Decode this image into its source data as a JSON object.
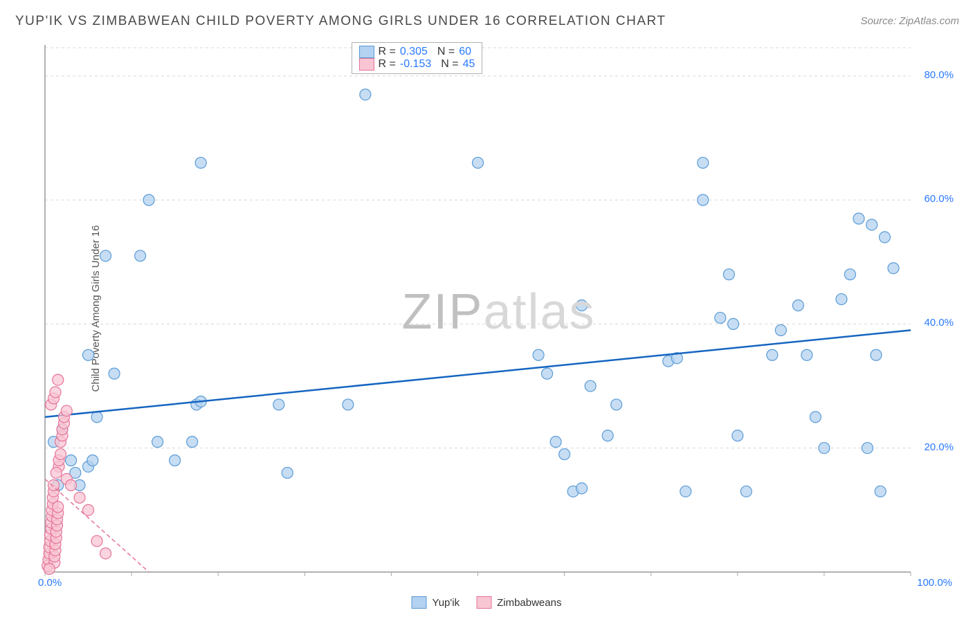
{
  "title": "YUP'IK VS ZIMBABWEAN CHILD POVERTY AMONG GIRLS UNDER 16 CORRELATION CHART",
  "source": "Source: ZipAtlas.com",
  "ylabel": "Child Poverty Among Girls Under 16",
  "watermark": {
    "zip": "ZIP",
    "atlas": "atlas"
  },
  "chart": {
    "type": "scatter",
    "background_color": "#ffffff",
    "grid_color": "#d8d8d8",
    "axis_color": "#999999",
    "tick_color": "#aaaaaa",
    "xlim": [
      0,
      100
    ],
    "ylim": [
      0,
      85
    ],
    "x_ticks": [
      0,
      10,
      20,
      30,
      40,
      50,
      60,
      70,
      80,
      90,
      100
    ],
    "y_gridlines": [
      20,
      40,
      60,
      80
    ],
    "x_axis_labels": [
      {
        "value": 0,
        "text": "0.0%"
      },
      {
        "value": 100,
        "text": "100.0%"
      }
    ],
    "y_axis_labels": [
      {
        "value": 20,
        "text": "20.0%"
      },
      {
        "value": 40,
        "text": "40.0%"
      },
      {
        "value": 60,
        "text": "60.0%"
      },
      {
        "value": 80,
        "text": "80.0%"
      }
    ],
    "point_radius": 8,
    "series": [
      {
        "name": "Yup'ik",
        "fill_color": "#b3d1f0",
        "stroke_color": "#5a9bd5",
        "fill_opacity": 0.75,
        "R": "0.305",
        "N": "60",
        "trend": {
          "x1": 0,
          "y1": 25,
          "x2": 100,
          "y2": 39,
          "color": "#1565c0",
          "width": 2.5,
          "dash": ""
        },
        "points": [
          [
            1,
            21
          ],
          [
            1.5,
            14
          ],
          [
            2,
            23
          ],
          [
            3,
            18
          ],
          [
            3.5,
            16
          ],
          [
            4,
            14
          ],
          [
            5,
            17
          ],
          [
            5.5,
            18
          ],
          [
            5,
            35
          ],
          [
            6,
            25
          ],
          [
            7,
            51
          ],
          [
            8,
            32
          ],
          [
            11,
            51
          ],
          [
            12,
            60
          ],
          [
            13,
            21
          ],
          [
            15,
            18
          ],
          [
            17,
            21
          ],
          [
            17.5,
            27
          ],
          [
            18,
            27.5
          ],
          [
            18,
            66
          ],
          [
            27,
            27
          ],
          [
            28,
            16
          ],
          [
            35,
            27
          ],
          [
            37,
            77
          ],
          [
            50,
            66
          ],
          [
            57,
            35
          ],
          [
            58,
            32
          ],
          [
            59,
            21
          ],
          [
            60,
            19
          ],
          [
            61,
            13
          ],
          [
            62,
            13.5
          ],
          [
            63,
            30
          ],
          [
            62,
            43
          ],
          [
            65,
            22
          ],
          [
            66,
            27
          ],
          [
            72,
            34
          ],
          [
            73,
            34.5
          ],
          [
            74,
            13
          ],
          [
            76,
            60
          ],
          [
            76,
            66
          ],
          [
            78,
            41
          ],
          [
            79,
            48
          ],
          [
            79.5,
            40
          ],
          [
            80,
            22
          ],
          [
            81,
            13
          ],
          [
            84,
            35
          ],
          [
            85,
            39
          ],
          [
            87,
            43
          ],
          [
            88,
            35
          ],
          [
            89,
            25
          ],
          [
            92,
            44
          ],
          [
            93,
            48
          ],
          [
            94,
            57
          ],
          [
            95,
            20
          ],
          [
            95.5,
            56
          ],
          [
            96,
            35
          ],
          [
            96.5,
            13
          ],
          [
            90,
            20
          ],
          [
            97,
            54
          ],
          [
            98,
            49
          ]
        ]
      },
      {
        "name": "Zimbabweans",
        "fill_color": "#f8c6d3",
        "stroke_color": "#e57399",
        "fill_opacity": 0.75,
        "R": "-0.153",
        "N": "45",
        "trend": {
          "x1": 0,
          "y1": 15,
          "x2": 12,
          "y2": 0,
          "color": "#e57399",
          "width": 1.5,
          "dash": "6,4"
        },
        "points": [
          [
            0.3,
            1
          ],
          [
            0.4,
            2
          ],
          [
            0.5,
            3
          ],
          [
            0.5,
            4
          ],
          [
            0.6,
            5
          ],
          [
            0.6,
            6
          ],
          [
            0.7,
            7
          ],
          [
            0.7,
            8
          ],
          [
            0.8,
            9
          ],
          [
            0.8,
            10
          ],
          [
            0.9,
            11
          ],
          [
            0.9,
            12
          ],
          [
            1,
            13
          ],
          [
            1,
            14
          ],
          [
            1.1,
            1.5
          ],
          [
            1.1,
            2.5
          ],
          [
            1.2,
            3.5
          ],
          [
            1.2,
            4.5
          ],
          [
            1.3,
            5.5
          ],
          [
            1.3,
            6.5
          ],
          [
            1.4,
            7.5
          ],
          [
            1.4,
            8.5
          ],
          [
            1.5,
            9.5
          ],
          [
            1.5,
            10.5
          ],
          [
            1.6,
            17
          ],
          [
            1.6,
            18
          ],
          [
            1.8,
            19
          ],
          [
            1.8,
            21
          ],
          [
            2,
            22
          ],
          [
            2,
            23
          ],
          [
            2.2,
            24
          ],
          [
            2.2,
            25
          ],
          [
            2.5,
            26
          ],
          [
            0.7,
            27
          ],
          [
            1,
            28
          ],
          [
            1.2,
            29
          ],
          [
            1.5,
            31
          ],
          [
            2.5,
            15
          ],
          [
            3,
            14
          ],
          [
            4,
            12
          ],
          [
            5,
            10
          ],
          [
            6,
            5
          ],
          [
            7,
            3
          ],
          [
            1.3,
            16
          ],
          [
            0.5,
            0.5
          ]
        ]
      }
    ]
  },
  "legend_top": {
    "rows": [
      {
        "swatch_fill": "#b3d1f0",
        "swatch_stroke": "#5a9bd5",
        "r_label": "R =",
        "r_val": "0.305",
        "n_label": "N =",
        "n_val": "60"
      },
      {
        "swatch_fill": "#f8c6d3",
        "swatch_stroke": "#e57399",
        "r_label": "R =",
        "r_val": "-0.153",
        "n_label": "N =",
        "n_val": "45"
      }
    ]
  },
  "legend_bottom": [
    {
      "swatch_fill": "#b3d1f0",
      "swatch_stroke": "#5a9bd5",
      "label": "Yup'ik"
    },
    {
      "swatch_fill": "#f8c6d3",
      "swatch_stroke": "#e57399",
      "label": "Zimbabweans"
    }
  ]
}
